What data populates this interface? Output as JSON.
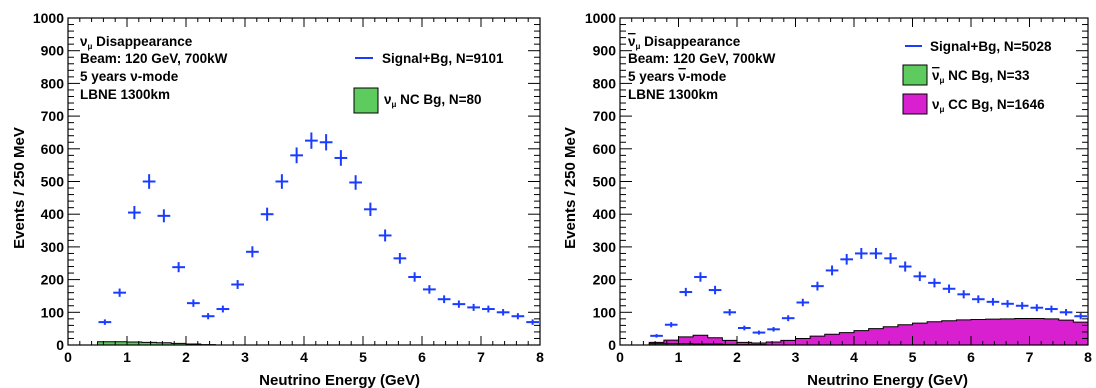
{
  "chart_data": [
    {
      "type": "histogram",
      "xlabel": "Neutrino Energy (GeV)",
      "ylabel": "Events / 250 MeV",
      "xlim": [
        0,
        8
      ],
      "ylim": [
        0,
        1000
      ],
      "xticks": [
        "0",
        "1",
        "2",
        "3",
        "4",
        "5",
        "6",
        "7",
        "8"
      ],
      "yticks": [
        "0",
        "100",
        "200",
        "300",
        "400",
        "500",
        "600",
        "700",
        "800",
        "900",
        "1000"
      ],
      "annotation": [
        "ν_μ Disappearance",
        "Beam: 120 GeV, 700kW",
        "5 years ν-mode",
        "LBNE 1300km"
      ],
      "series": [
        {
          "name": "Signal+Bg, N=9101",
          "style": "crosses",
          "color": "#1a3cff",
          "bin_width": 0.25,
          "x": [
            0.625,
            0.875,
            1.125,
            1.375,
            1.625,
            1.875,
            2.125,
            2.375,
            2.625,
            2.875,
            3.125,
            3.375,
            3.625,
            3.875,
            4.125,
            4.375,
            4.625,
            4.875,
            5.125,
            5.375,
            5.625,
            5.875,
            6.125,
            6.375,
            6.625,
            6.875,
            7.125,
            7.375,
            7.625,
            7.875
          ],
          "values": [
            70,
            160,
            405,
            500,
            395,
            238,
            128,
            88,
            110,
            185,
            285,
            400,
            500,
            580,
            625,
            620,
            572,
            497,
            415,
            335,
            265,
            208,
            170,
            140,
            125,
            115,
            110,
            100,
            88,
            70
          ]
        },
        {
          "name": "ν_μ NC Bg, N=80",
          "style": "filled-hist",
          "color": "#5ecb5e",
          "bin_width": 0.25,
          "x": [
            0.625,
            0.875,
            1.125,
            1.375,
            1.625,
            1.875,
            2.125,
            2.375
          ],
          "values": [
            10,
            10,
            9,
            8,
            7,
            5,
            3,
            1
          ]
        }
      ]
    },
    {
      "type": "histogram",
      "xlabel": "Neutrino Energy (GeV)",
      "ylabel": "Events / 250 MeV",
      "xlim": [
        0,
        8
      ],
      "ylim": [
        0,
        1000
      ],
      "xticks": [
        "0",
        "1",
        "2",
        "3",
        "4",
        "5",
        "6",
        "7",
        "8"
      ],
      "yticks": [
        "0",
        "100",
        "200",
        "300",
        "400",
        "500",
        "600",
        "700",
        "800",
        "900",
        "1000"
      ],
      "annotation": [
        "ν̄_μ Disappearance",
        "Beam: 120 GeV, 700kW",
        "5 years ν̄-mode",
        "LBNE 1300km"
      ],
      "series": [
        {
          "name": "Signal+Bg, N=5028",
          "style": "crosses",
          "color": "#1a3cff",
          "bin_width": 0.25,
          "x": [
            0.625,
            0.875,
            1.125,
            1.375,
            1.625,
            1.875,
            2.125,
            2.375,
            2.625,
            2.875,
            3.125,
            3.375,
            3.625,
            3.875,
            4.125,
            4.375,
            4.625,
            4.875,
            5.125,
            5.375,
            5.625,
            5.875,
            6.125,
            6.375,
            6.625,
            6.875,
            7.125,
            7.375,
            7.625,
            7.875
          ],
          "values": [
            28,
            62,
            162,
            208,
            168,
            100,
            52,
            38,
            48,
            82,
            130,
            180,
            228,
            262,
            280,
            280,
            265,
            240,
            210,
            190,
            172,
            155,
            140,
            132,
            126,
            120,
            114,
            110,
            100,
            88
          ]
        },
        {
          "name": "ν̄_μ NC Bg, N=33",
          "style": "filled-hist",
          "color": "#5ecb5e",
          "bin_width": 0.25,
          "x": [
            0.625,
            0.875,
            1.125,
            1.375,
            1.625,
            1.875,
            2.125,
            2.375
          ],
          "values": [
            4,
            4,
            4,
            3,
            3,
            2,
            1,
            1
          ]
        },
        {
          "name": "ν_μ CC Bg, N=1646",
          "style": "filled-hist",
          "color": "#d820d0",
          "bin_width": 0.25,
          "x": [
            0.625,
            0.875,
            1.125,
            1.375,
            1.625,
            1.875,
            2.125,
            2.375,
            2.625,
            2.875,
            3.125,
            3.375,
            3.625,
            3.875,
            4.125,
            4.375,
            4.625,
            4.875,
            5.125,
            5.375,
            5.625,
            5.875,
            6.125,
            6.375,
            6.625,
            6.875,
            7.125,
            7.375,
            7.625,
            7.875
          ],
          "values": [
            8,
            15,
            25,
            30,
            22,
            14,
            8,
            6,
            9,
            14,
            20,
            27,
            33,
            38,
            44,
            50,
            56,
            62,
            67,
            71,
            74,
            77,
            78,
            79,
            80,
            81,
            81,
            80,
            76,
            70
          ]
        }
      ]
    }
  ]
}
